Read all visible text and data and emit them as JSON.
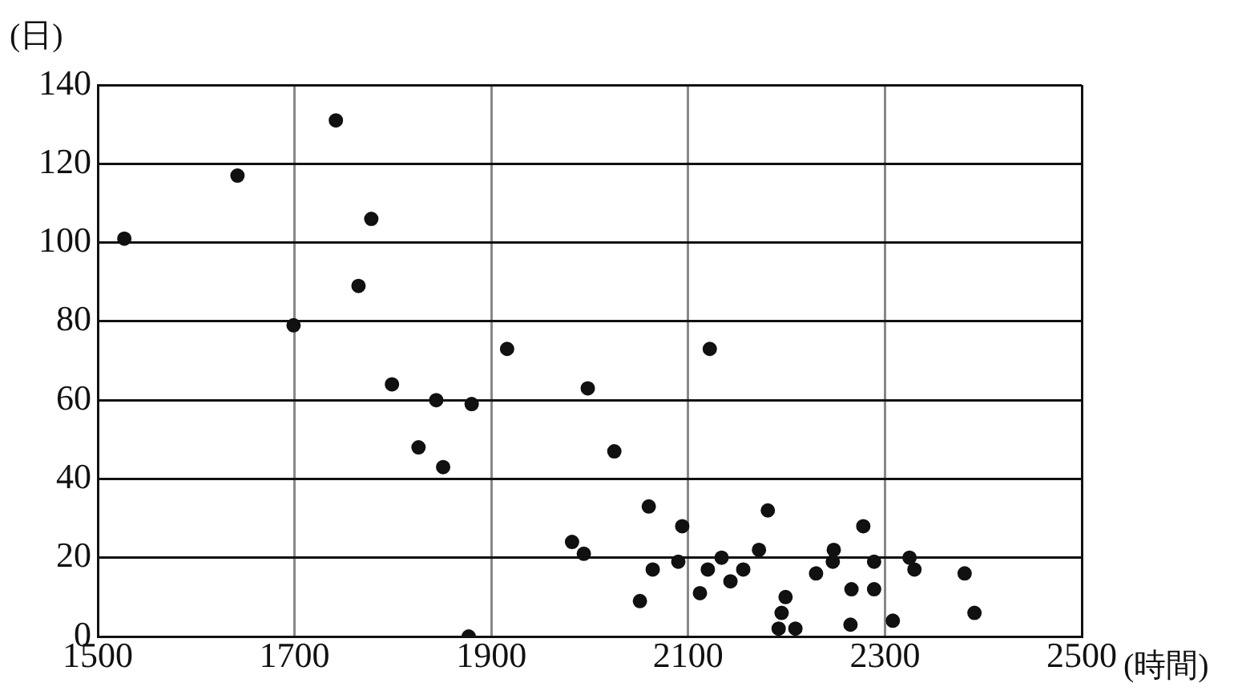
{
  "chart_data": {
    "type": "scatter",
    "xlabel": "(時間)",
    "ylabel": "(日)",
    "xlim": [
      1500,
      2500
    ],
    "xticks": [
      1500,
      1700,
      1900,
      2100,
      2300,
      2500
    ],
    "ylim": [
      0,
      140
    ],
    "yticks": [
      0,
      20,
      40,
      60,
      80,
      100,
      120,
      140
    ],
    "grid": true,
    "marker": "circle",
    "legend": false,
    "series": [
      {
        "color": "#111111",
        "x": [
          1527,
          1642,
          1699,
          1742,
          1778,
          1765,
          1799,
          1844,
          1826,
          1851,
          1880,
          1877,
          1916,
          1998,
          2025,
          2060,
          2094,
          1982,
          1994,
          2064,
          2090,
          2051,
          2122,
          2181,
          2172,
          2134,
          2120,
          2156,
          2143,
          2112,
          2199,
          2195,
          2192,
          2209,
          2278,
          2248,
          2247,
          2289,
          2230,
          2325,
          2330,
          2381,
          2266,
          2289,
          2265,
          2308,
          2391
        ],
        "values": [
          101,
          117,
          79,
          131,
          106,
          89,
          64,
          60,
          48,
          43,
          59,
          0,
          73,
          63,
          47,
          33,
          28,
          24,
          21,
          17,
          19,
          9,
          73,
          32,
          22,
          20,
          17,
          17,
          14,
          11,
          10,
          6,
          2,
          2,
          28,
          22,
          19,
          19,
          16,
          20,
          17,
          16,
          12,
          12,
          3,
          4,
          6
        ]
      }
    ]
  }
}
